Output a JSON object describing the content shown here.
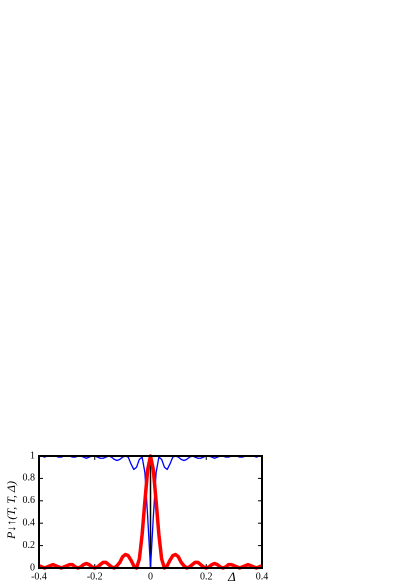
{
  "chart_data": {
    "type": "line",
    "ylabel": "P↓↑(T, T, Δ)",
    "xlabel": "Δ",
    "x": [
      -0.4,
      -0.39,
      -0.38,
      -0.37,
      -0.36,
      -0.35,
      -0.34,
      -0.33,
      -0.32,
      -0.31,
      -0.3,
      -0.29,
      -0.28,
      -0.27,
      -0.26,
      -0.25,
      -0.24,
      -0.23,
      -0.22,
      -0.21,
      -0.2,
      -0.19,
      -0.18,
      -0.17,
      -0.16,
      -0.15,
      -0.14,
      -0.13,
      -0.12,
      -0.11,
      -0.1,
      -0.09,
      -0.08,
      -0.07,
      -0.06,
      -0.05,
      -0.04,
      -0.03,
      -0.02,
      -0.01,
      0,
      0.01,
      0.02,
      0.03,
      0.04,
      0.05,
      0.06,
      0.07,
      0.08,
      0.09,
      0.1,
      0.11,
      0.12,
      0.13,
      0.14,
      0.15,
      0.16,
      0.17,
      0.18,
      0.19,
      0.2,
      0.21,
      0.22,
      0.23,
      0.24,
      0.25,
      0.26,
      0.27,
      0.28,
      0.29,
      0.3,
      0.31,
      0.32,
      0.33,
      0.34,
      0.35,
      0.36,
      0.37,
      0.38,
      0.39,
      0.4
    ],
    "series": [
      {
        "color": "#0000ff",
        "values": [
          1,
          1,
          0.99,
          1,
          1,
          1,
          1,
          0.99,
          0.99,
          1,
          1,
          1,
          0.99,
          0.99,
          1,
          1,
          0.99,
          0.98,
          0.99,
          1,
          1,
          0.99,
          0.98,
          0.98,
          0.99,
          1,
          0.99,
          0.97,
          0.96,
          0.97,
          0.99,
          1,
          0.99,
          0.93,
          0.88,
          0.9,
          0.97,
          0.99,
          0.85,
          0.45,
          0,
          0.45,
          0.85,
          0.99,
          0.97,
          0.9,
          0.88,
          0.93,
          0.99,
          1,
          0.99,
          0.97,
          0.96,
          0.97,
          0.99,
          1,
          0.99,
          0.98,
          0.98,
          0.99,
          1,
          1,
          0.99,
          0.98,
          0.99,
          1,
          1,
          0.99,
          0.99,
          1,
          1,
          1,
          0.99,
          0.99,
          1,
          1,
          1,
          1,
          0.99,
          1,
          1
        ]
      },
      {
        "color": "#ff0000",
        "values": [
          0.02,
          0.01,
          0.0,
          0.01,
          0.02,
          0.03,
          0.02,
          0.01,
          0.0,
          0.01,
          0.02,
          0.03,
          0.03,
          0.01,
          0.0,
          0.01,
          0.03,
          0.04,
          0.03,
          0.01,
          0.0,
          0.01,
          0.03,
          0.05,
          0.05,
          0.03,
          0.01,
          0.0,
          0.02,
          0.05,
          0.1,
          0.12,
          0.11,
          0.07,
          0.02,
          0.0,
          0.08,
          0.3,
          0.6,
          0.88,
          1,
          0.88,
          0.6,
          0.3,
          0.08,
          0.0,
          0.02,
          0.07,
          0.11,
          0.12,
          0.1,
          0.05,
          0.02,
          0.0,
          0.01,
          0.03,
          0.05,
          0.05,
          0.03,
          0.01,
          0.0,
          0.01,
          0.03,
          0.04,
          0.03,
          0.01,
          0.0,
          0.01,
          0.03,
          0.03,
          0.02,
          0.01,
          0.0,
          0.01,
          0.02,
          0.03,
          0.02,
          0.01,
          0.0,
          0.01,
          0.02
        ]
      }
    ],
    "xlim": [
      -0.4,
      0.4
    ],
    "xticks": [
      -0.4,
      -0.2,
      0,
      0.2,
      0.4
    ],
    "ylim": [
      0,
      1
    ],
    "yticks": [
      0,
      0.2,
      0.4,
      0.6,
      0.8,
      1
    ]
  }
}
